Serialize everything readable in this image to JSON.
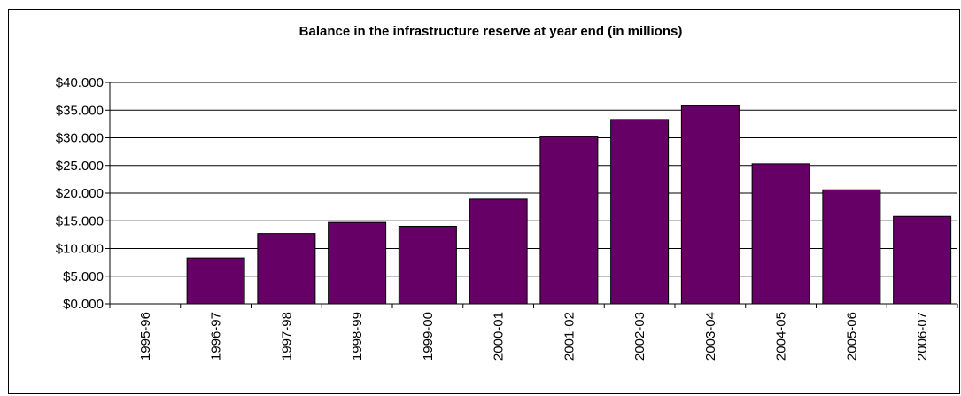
{
  "chart_data": {
    "type": "bar",
    "title": "Balance in the infrastructure reserve at year end (in millions)",
    "xlabel": "",
    "ylabel": "",
    "categories": [
      "1995-96",
      "1996-97",
      "1997-98",
      "1998-99",
      "1999-00",
      "2000-01",
      "2001-02",
      "2002-03",
      "2003-04",
      "2004-05",
      "2005-06",
      "2006-07"
    ],
    "values": [
      0,
      8.3,
      12.7,
      14.7,
      14.0,
      18.9,
      30.2,
      33.3,
      35.8,
      25.3,
      20.6,
      15.8
    ],
    "ylim": [
      0,
      40
    ],
    "yticks": [
      0,
      5,
      10,
      15,
      20,
      25,
      30,
      35,
      40
    ],
    "ytick_labels": [
      "$0.000",
      "$5.000",
      "$10.000",
      "$15.000",
      "$20.000",
      "$25.000",
      "$30.000",
      "$35.000",
      "$40.000"
    ],
    "grid": true,
    "legend": "none",
    "bar_color": "#660066"
  }
}
